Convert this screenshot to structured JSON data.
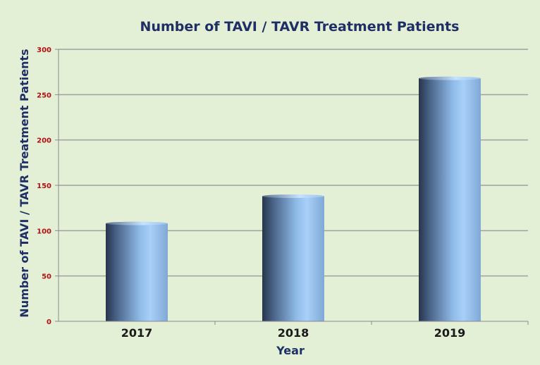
{
  "chart_data": {
    "type": "bar",
    "title": "Number of TAVI / TAVR Treatment  Patients",
    "xlabel": "Year",
    "ylabel": "Number of TAVI / TAVR Treatment Patients",
    "categories": [
      "2017",
      "2018",
      "2019"
    ],
    "values": [
      108,
      138,
      268
    ],
    "ylim": [
      0,
      300
    ],
    "yticks": [
      0,
      50,
      100,
      150,
      200,
      250,
      300
    ],
    "grid": true,
    "legend": "none",
    "colors": {
      "background": "#e4f0d6",
      "gridline": "#a0a0a0",
      "bar_dark": "#27354c",
      "bar_light": "#a8d0f8",
      "title": "#1f2f66",
      "ytick": "#b01010"
    }
  }
}
